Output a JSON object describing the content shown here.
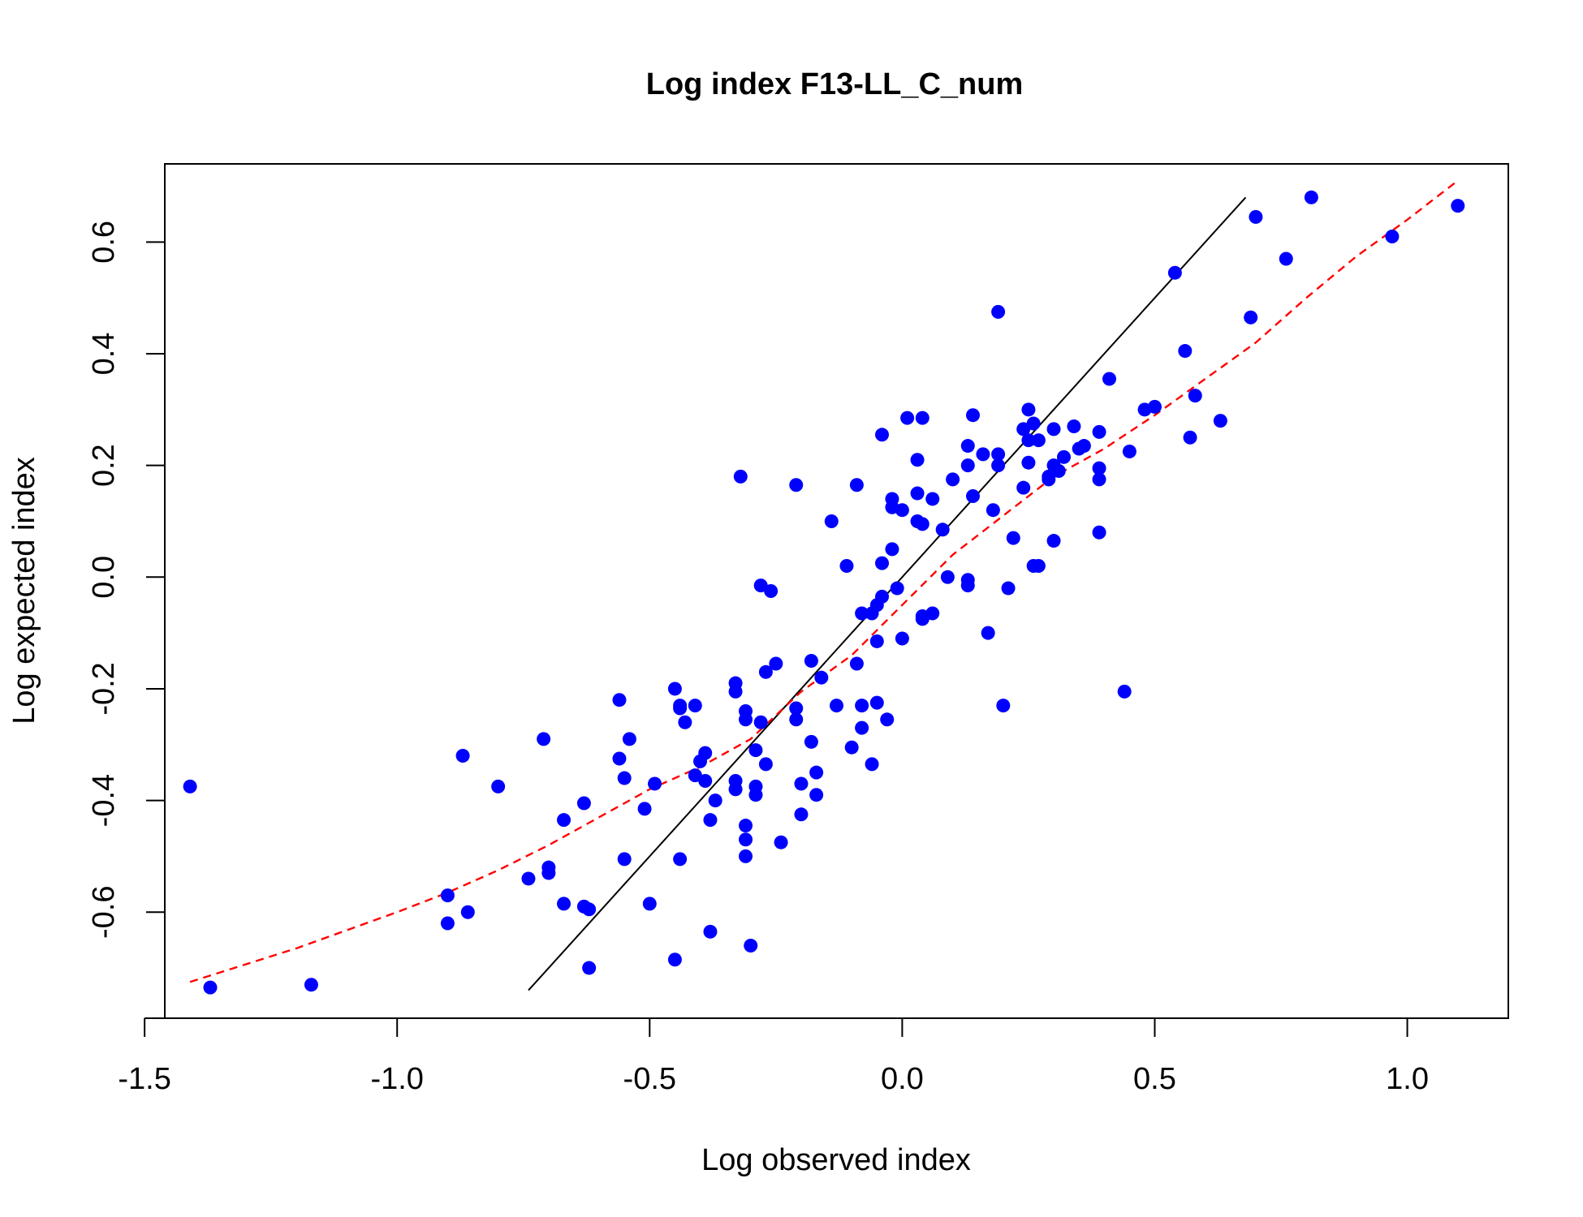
{
  "chart_data": {
    "type": "scatter",
    "title": "Log index F13-LL_C_num",
    "xlabel": "Log observed index",
    "ylabel": "Log expected index",
    "xlim": [
      -1.46,
      1.2
    ],
    "ylim": [
      -0.79,
      0.74
    ],
    "xticks": [
      -1.5,
      -1.0,
      -0.5,
      0.0,
      0.5,
      1.0
    ],
    "xtick_labels": [
      "-1.5",
      "-1.0",
      "-0.5",
      "0.0",
      "0.5",
      "1.0"
    ],
    "yticks": [
      -0.6,
      -0.4,
      -0.2,
      0.0,
      0.2,
      0.4,
      0.6
    ],
    "ytick_labels": [
      "-0.6",
      "-0.4",
      "-0.2",
      "0.0",
      "0.2",
      "0.4",
      "0.6"
    ],
    "grid": false,
    "colors": {
      "points": "#0000ff",
      "identity_line": "#000000",
      "smoother": "#ff0000"
    },
    "identity_line": {
      "x": [
        -0.74,
        0.68
      ],
      "y": [
        -0.74,
        0.68
      ]
    },
    "smoother": {
      "x": [
        -1.41,
        -1.2,
        -1.0,
        -0.9,
        -0.8,
        -0.7,
        -0.6,
        -0.5,
        -0.4,
        -0.3,
        -0.2,
        -0.1,
        0.0,
        0.1,
        0.2,
        0.3,
        0.4,
        0.5,
        0.6,
        0.7,
        0.8,
        0.9,
        1.0,
        1.1
      ],
      "y": [
        -0.725,
        -0.665,
        -0.6,
        -0.565,
        -0.525,
        -0.48,
        -0.43,
        -0.38,
        -0.34,
        -0.29,
        -0.205,
        -0.14,
        -0.05,
        0.04,
        0.11,
        0.18,
        0.23,
        0.29,
        0.355,
        0.42,
        0.5,
        0.575,
        0.64,
        0.71
      ]
    },
    "points": [
      [
        -1.41,
        -0.375
      ],
      [
        -1.37,
        -0.735
      ],
      [
        -1.17,
        -0.73
      ],
      [
        -0.9,
        -0.57
      ],
      [
        -0.9,
        -0.62
      ],
      [
        -0.86,
        -0.6
      ],
      [
        -0.87,
        -0.32
      ],
      [
        -0.8,
        -0.375
      ],
      [
        -0.74,
        -0.54
      ],
      [
        -0.71,
        -0.29
      ],
      [
        -0.7,
        -0.53
      ],
      [
        -0.7,
        -0.52
      ],
      [
        -0.67,
        -0.435
      ],
      [
        -0.67,
        -0.585
      ],
      [
        -0.63,
        -0.405
      ],
      [
        -0.63,
        -0.59
      ],
      [
        -0.62,
        -0.595
      ],
      [
        -0.62,
        -0.7
      ],
      [
        -0.56,
        -0.22
      ],
      [
        -0.56,
        -0.325
      ],
      [
        -0.55,
        -0.36
      ],
      [
        -0.55,
        -0.505
      ],
      [
        -0.54,
        -0.29
      ],
      [
        -0.51,
        -0.415
      ],
      [
        -0.5,
        -0.585
      ],
      [
        -0.49,
        -0.37
      ],
      [
        -0.45,
        -0.2
      ],
      [
        -0.45,
        -0.685
      ],
      [
        -0.44,
        -0.505
      ],
      [
        -0.44,
        -0.23
      ],
      [
        -0.44,
        -0.235
      ],
      [
        -0.43,
        -0.26
      ],
      [
        -0.41,
        -0.23
      ],
      [
        -0.41,
        -0.355
      ],
      [
        -0.4,
        -0.33
      ],
      [
        -0.39,
        -0.315
      ],
      [
        -0.39,
        -0.365
      ],
      [
        -0.38,
        -0.435
      ],
      [
        -0.38,
        -0.635
      ],
      [
        -0.37,
        -0.4
      ],
      [
        -0.33,
        -0.19
      ],
      [
        -0.33,
        -0.205
      ],
      [
        -0.33,
        -0.365
      ],
      [
        -0.33,
        -0.38
      ],
      [
        -0.32,
        0.18
      ],
      [
        -0.31,
        -0.24
      ],
      [
        -0.31,
        -0.255
      ],
      [
        -0.31,
        -0.5
      ],
      [
        -0.31,
        -0.445
      ],
      [
        -0.31,
        -0.47
      ],
      [
        -0.3,
        -0.66
      ],
      [
        -0.29,
        -0.31
      ],
      [
        -0.29,
        -0.375
      ],
      [
        -0.29,
        -0.39
      ],
      [
        -0.28,
        -0.26
      ],
      [
        -0.28,
        -0.015
      ],
      [
        -0.27,
        -0.17
      ],
      [
        -0.27,
        -0.335
      ],
      [
        -0.26,
        -0.025
      ],
      [
        -0.25,
        -0.155
      ],
      [
        -0.24,
        -0.475
      ],
      [
        -0.21,
        0.165
      ],
      [
        -0.21,
        -0.235
      ],
      [
        -0.21,
        -0.255
      ],
      [
        -0.2,
        -0.37
      ],
      [
        -0.2,
        -0.425
      ],
      [
        -0.18,
        -0.15
      ],
      [
        -0.18,
        -0.295
      ],
      [
        -0.17,
        -0.35
      ],
      [
        -0.17,
        -0.39
      ],
      [
        -0.16,
        -0.18
      ],
      [
        -0.14,
        0.1
      ],
      [
        -0.13,
        -0.23
      ],
      [
        -0.11,
        0.02
      ],
      [
        -0.1,
        -0.305
      ],
      [
        -0.09,
        -0.155
      ],
      [
        -0.09,
        0.165
      ],
      [
        -0.08,
        -0.065
      ],
      [
        -0.08,
        -0.23
      ],
      [
        -0.08,
        -0.27
      ],
      [
        -0.06,
        -0.065
      ],
      [
        -0.06,
        -0.335
      ],
      [
        -0.05,
        -0.05
      ],
      [
        -0.05,
        -0.115
      ],
      [
        -0.05,
        -0.225
      ],
      [
        -0.04,
        -0.035
      ],
      [
        -0.04,
        0.025
      ],
      [
        -0.04,
        0.255
      ],
      [
        -0.03,
        -0.255
      ],
      [
        -0.02,
        0.125
      ],
      [
        -0.02,
        0.14
      ],
      [
        -0.02,
        0.05
      ],
      [
        -0.01,
        -0.02
      ],
      [
        0.0,
        0.12
      ],
      [
        0.0,
        -0.11
      ],
      [
        0.01,
        0.285
      ],
      [
        0.03,
        0.1
      ],
      [
        0.03,
        0.15
      ],
      [
        0.03,
        0.21
      ],
      [
        0.04,
        0.095
      ],
      [
        0.04,
        -0.07
      ],
      [
        0.04,
        -0.075
      ],
      [
        0.04,
        0.285
      ],
      [
        0.06,
        0.14
      ],
      [
        0.06,
        -0.065
      ],
      [
        0.08,
        0.085
      ],
      [
        0.09,
        0.0
      ],
      [
        0.1,
        0.175
      ],
      [
        0.13,
        0.235
      ],
      [
        0.13,
        0.2
      ],
      [
        0.13,
        -0.005
      ],
      [
        0.13,
        -0.015
      ],
      [
        0.14,
        0.145
      ],
      [
        0.14,
        0.29
      ],
      [
        0.16,
        0.22
      ],
      [
        0.17,
        -0.1
      ],
      [
        0.18,
        0.12
      ],
      [
        0.19,
        0.22
      ],
      [
        0.19,
        0.2
      ],
      [
        0.19,
        0.475
      ],
      [
        0.2,
        -0.23
      ],
      [
        0.21,
        -0.02
      ],
      [
        0.22,
        0.07
      ],
      [
        0.24,
        0.16
      ],
      [
        0.24,
        0.265
      ],
      [
        0.25,
        0.245
      ],
      [
        0.25,
        0.205
      ],
      [
        0.25,
        0.3
      ],
      [
        0.26,
        0.275
      ],
      [
        0.26,
        0.02
      ],
      [
        0.27,
        0.245
      ],
      [
        0.27,
        0.02
      ],
      [
        0.29,
        0.18
      ],
      [
        0.29,
        0.175
      ],
      [
        0.3,
        0.2
      ],
      [
        0.3,
        0.265
      ],
      [
        0.3,
        0.065
      ],
      [
        0.31,
        0.19
      ],
      [
        0.32,
        0.215
      ],
      [
        0.34,
        0.27
      ],
      [
        0.35,
        0.23
      ],
      [
        0.36,
        0.235
      ],
      [
        0.39,
        0.26
      ],
      [
        0.39,
        0.195
      ],
      [
        0.39,
        0.175
      ],
      [
        0.39,
        0.08
      ],
      [
        0.41,
        0.355
      ],
      [
        0.44,
        -0.205
      ],
      [
        0.45,
        0.225
      ],
      [
        0.48,
        0.3
      ],
      [
        0.5,
        0.305
      ],
      [
        0.54,
        0.545
      ],
      [
        0.56,
        0.405
      ],
      [
        0.57,
        0.25
      ],
      [
        0.58,
        0.325
      ],
      [
        0.63,
        0.28
      ],
      [
        0.69,
        0.465
      ],
      [
        0.7,
        0.645
      ],
      [
        0.76,
        0.57
      ],
      [
        0.81,
        0.68
      ],
      [
        0.97,
        0.61
      ],
      [
        1.1,
        0.665
      ]
    ]
  }
}
